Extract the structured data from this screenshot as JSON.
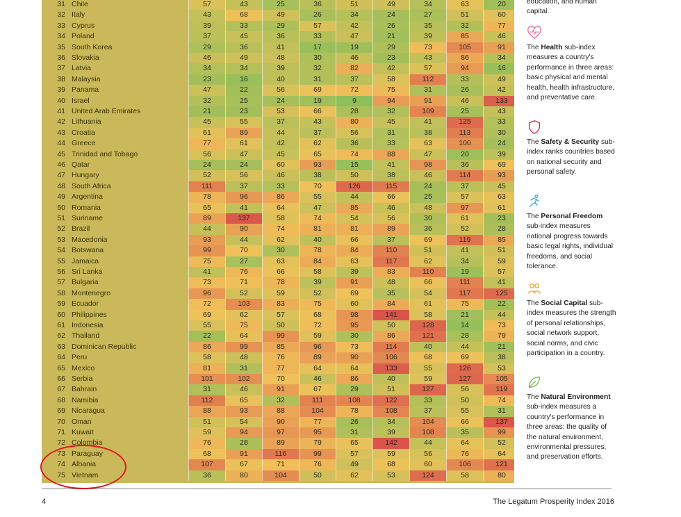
{
  "table": {
    "rows": [
      {
        "rank": "31",
        "country": "Chile",
        "values": [
          57,
          43,
          25,
          36,
          51,
          49,
          34,
          63,
          20
        ]
      },
      {
        "rank": "32",
        "country": "Italy",
        "values": [
          43,
          68,
          49,
          26,
          34,
          24,
          27,
          51,
          60
        ]
      },
      {
        "rank": "33",
        "country": "Cyprus",
        "values": [
          39,
          33,
          29,
          57,
          42,
          26,
          35,
          32,
          77
        ]
      },
      {
        "rank": "34",
        "country": "Poland",
        "values": [
          37,
          45,
          36,
          33,
          47,
          21,
          39,
          85,
          46
        ]
      },
      {
        "rank": "35",
        "country": "South Korea",
        "values": [
          29,
          36,
          41,
          17,
          19,
          29,
          73,
          105,
          91
        ]
      },
      {
        "rank": "36",
        "country": "Slovakia",
        "values": [
          46,
          49,
          48,
          30,
          46,
          23,
          43,
          86,
          34
        ]
      },
      {
        "rank": "37",
        "country": "Latvia",
        "values": [
          34,
          34,
          39,
          32,
          82,
          42,
          57,
          94,
          16
        ]
      },
      {
        "rank": "38",
        "country": "Malaysia",
        "values": [
          23,
          16,
          40,
          31,
          37,
          58,
          112,
          33,
          49
        ]
      },
      {
        "rank": "39",
        "country": "Panama",
        "values": [
          47,
          22,
          56,
          69,
          72,
          75,
          31,
          26,
          42
        ]
      },
      {
        "rank": "40",
        "country": "Israel",
        "values": [
          32,
          25,
          24,
          19,
          9,
          94,
          91,
          46,
          133
        ]
      },
      {
        "rank": "41",
        "country": "United Arab Emirates",
        "values": [
          21,
          23,
          53,
          66,
          28,
          32,
          109,
          25,
          43
        ]
      },
      {
        "rank": "42",
        "country": "Lithuania",
        "values": [
          45,
          55,
          37,
          43,
          80,
          45,
          41,
          125,
          33
        ]
      },
      {
        "rank": "43",
        "country": "Croatia",
        "values": [
          61,
          89,
          44,
          37,
          56,
          31,
          38,
          113,
          30
        ]
      },
      {
        "rank": "44",
        "country": "Greece",
        "values": [
          77,
          61,
          42,
          62,
          36,
          33,
          63,
          100,
          24
        ]
      },
      {
        "rank": "45",
        "country": "Trinidad and Tobago",
        "values": [
          56,
          47,
          45,
          65,
          74,
          88,
          47,
          20,
          39
        ]
      },
      {
        "rank": "46",
        "country": "Qatar",
        "values": [
          24,
          24,
          60,
          93,
          15,
          41,
          98,
          36,
          69
        ]
      },
      {
        "rank": "47",
        "country": "Hungary",
        "values": [
          52,
          56,
          46,
          38,
          50,
          38,
          46,
          114,
          93
        ]
      },
      {
        "rank": "48",
        "country": "South Africa",
        "values": [
          111,
          37,
          33,
          70,
          126,
          115,
          24,
          37,
          45
        ]
      },
      {
        "rank": "49",
        "country": "Argentina",
        "values": [
          78,
          96,
          86,
          55,
          44,
          66,
          25,
          57,
          63
        ]
      },
      {
        "rank": "50",
        "country": "Romania",
        "values": [
          65,
          41,
          64,
          47,
          85,
          46,
          48,
          97,
          61
        ]
      },
      {
        "rank": "51",
        "country": "Suriname",
        "values": [
          89,
          137,
          58,
          74,
          54,
          56,
          30,
          61,
          23
        ]
      },
      {
        "rank": "52",
        "country": "Brazil",
        "values": [
          44,
          90,
          74,
          81,
          81,
          89,
          36,
          52,
          28
        ]
      },
      {
        "rank": "53",
        "country": "Macedonia",
        "values": [
          93,
          44,
          62,
          40,
          66,
          37,
          69,
          119,
          85
        ]
      },
      {
        "rank": "54",
        "country": "Botswana",
        "values": [
          99,
          70,
          30,
          78,
          84,
          110,
          51,
          41,
          51
        ]
      },
      {
        "rank": "55",
        "country": "Jamaica",
        "values": [
          75,
          27,
          63,
          84,
          63,
          117,
          62,
          34,
          59
        ]
      },
      {
        "rank": "56",
        "country": "Sri Lanka",
        "values": [
          41,
          76,
          66,
          58,
          39,
          83,
          110,
          19,
          57
        ]
      },
      {
        "rank": "57",
        "country": "Bulgaria",
        "values": [
          73,
          71,
          78,
          39,
          91,
          48,
          66,
          111,
          41
        ]
      },
      {
        "rank": "58",
        "country": "Montenegro",
        "values": [
          96,
          52,
          59,
          52,
          69,
          35,
          54,
          117,
          125
        ]
      },
      {
        "rank": "59",
        "country": "Ecuador",
        "values": [
          72,
          103,
          83,
          75,
          60,
          84,
          61,
          75,
          22
        ]
      },
      {
        "rank": "60",
        "country": "Philippines",
        "values": [
          69,
          62,
          57,
          68,
          98,
          141,
          58,
          21,
          44
        ]
      },
      {
        "rank": "61",
        "country": "Indonesia",
        "values": [
          55,
          75,
          50,
          72,
          95,
          50,
          128,
          14,
          73
        ]
      },
      {
        "rank": "62",
        "country": "Thailand",
        "values": [
          22,
          64,
          99,
          59,
          30,
          86,
          121,
          28,
          79
        ]
      },
      {
        "rank": "63",
        "country": "Dominican Republic",
        "values": [
          86,
          99,
          85,
          96,
          73,
          114,
          40,
          44,
          21
        ]
      },
      {
        "rank": "64",
        "country": "Peru",
        "values": [
          58,
          48,
          76,
          89,
          90,
          106,
          68,
          69,
          38
        ]
      },
      {
        "rank": "65",
        "country": "Mexico",
        "values": [
          81,
          31,
          77,
          64,
          64,
          133,
          55,
          126,
          53
        ]
      },
      {
        "rank": "66",
        "country": "Serbia",
        "values": [
          101,
          102,
          70,
          46,
          86,
          40,
          59,
          127,
          105
        ]
      },
      {
        "rank": "67",
        "country": "Bahrain",
        "values": [
          31,
          46,
          91,
          67,
          29,
          51,
          127,
          56,
          119
        ]
      },
      {
        "rank": "68",
        "country": "Namibia",
        "values": [
          112,
          65,
          32,
          111,
          108,
          122,
          33,
          50,
          74
        ]
      },
      {
        "rank": "69",
        "country": "Nicaragua",
        "values": [
          88,
          93,
          88,
          104,
          78,
          108,
          37,
          55,
          31
        ]
      },
      {
        "rank": "70",
        "country": "Oman",
        "values": [
          51,
          54,
          90,
          77,
          26,
          34,
          104,
          66,
          137
        ]
      },
      {
        "rank": "71",
        "country": "Kuwait",
        "values": [
          59,
          94,
          97,
          95,
          31,
          39,
          108,
          35,
          99
        ]
      },
      {
        "rank": "72",
        "country": "Colombia",
        "values": [
          76,
          28,
          89,
          79,
          65,
          142,
          44,
          64,
          52
        ]
      },
      {
        "rank": "73",
        "country": "Paraguay",
        "values": [
          68,
          91,
          116,
          99,
          57,
          59,
          56,
          76,
          64
        ]
      },
      {
        "rank": "74",
        "country": "Albania",
        "values": [
          107,
          67,
          71,
          76,
          49,
          68,
          60,
          106,
          121
        ]
      },
      {
        "rank": "75",
        "country": "Vietnam",
        "values": [
          36,
          80,
          104,
          50,
          62,
          53,
          124,
          58,
          80
        ]
      }
    ]
  },
  "sidebar": {
    "top_fragment": "education, and human capital.",
    "sections": [
      {
        "icon": "heart-pulse-icon",
        "title": "Health",
        "text": "sub-index measures a country's performance in three areas: basic physical and mental health, health infrastructure, and preventative care.",
        "prefix": "The "
      },
      {
        "icon": "shield-icon",
        "title": "Safety & Security",
        "text": "sub-index ranks countries based on national security and personal safety.",
        "prefix": "The "
      },
      {
        "icon": "running-person-icon",
        "title": "Personal Freedom",
        "text": "sub-index measures national progress towards basic legal rights, individual freedoms, and social tolerance.",
        "prefix": "The "
      },
      {
        "icon": "people-group-icon",
        "title": "Social Capital",
        "text": "sub-index measures the strength of personal relationships, social network support, social norms, and civic participation in a country.",
        "prefix": "The "
      },
      {
        "icon": "leaf-icon",
        "title": "Natural Environment",
        "text": "sub-index measures a country's performance in three areas: the quality of the natural environment, environmental pressures, and preservation efforts.",
        "prefix": "The "
      }
    ]
  },
  "footer": {
    "page_number": "4",
    "publication": "The Legatum Prosperity Index 2016"
  },
  "colors": {
    "table_bg": "#c9b95a",
    "accent": "#e2161c",
    "scale_good": "#8fbf5a",
    "scale_mid": "#f0c15a",
    "scale_bad": "#d9534a"
  }
}
